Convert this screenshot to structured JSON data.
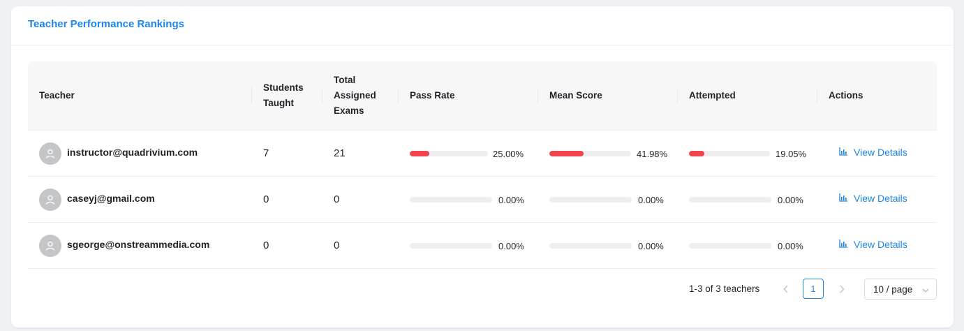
{
  "card": {
    "title": "Teacher Performance Rankings"
  },
  "table": {
    "headers": {
      "teacher": "Teacher",
      "students_taught_1": "Students",
      "students_taught_2": "Taught",
      "total_exams_1": "Total",
      "total_exams_2": "Assigned",
      "total_exams_3": "Exams",
      "pass_rate": "Pass Rate",
      "mean_score": "Mean Score",
      "attempted": "Attempted",
      "actions": "Actions"
    },
    "rows": [
      {
        "email": "instructor@quadrivium.com",
        "students_taught": "7",
        "total_exams": "21",
        "pass_rate": 25.0,
        "pass_rate_label": "25.00%",
        "mean_score": 41.98,
        "mean_score_label": "41.98%",
        "attempted": 19.05,
        "attempted_label": "19.05%",
        "action_label": "View Details"
      },
      {
        "email": "caseyj@gmail.com",
        "students_taught": "0",
        "total_exams": "0",
        "pass_rate": 0,
        "pass_rate_label": "0.00%",
        "mean_score": 0,
        "mean_score_label": "0.00%",
        "attempted": 0,
        "attempted_label": "0.00%",
        "action_label": "View Details"
      },
      {
        "email": "sgeorge@onstreammedia.com",
        "students_taught": "0",
        "total_exams": "0",
        "pass_rate": 0,
        "pass_rate_label": "0.00%",
        "mean_score": 0,
        "mean_score_label": "0.00%",
        "attempted": 0,
        "attempted_label": "0.00%",
        "action_label": "View Details"
      }
    ]
  },
  "pagination": {
    "summary": "1-3 of 3 teachers",
    "current_page": "1",
    "page_size": "10 / page",
    "prev_icon": "chevron-left-icon",
    "next_icon": "chevron-right-icon"
  },
  "colors": {
    "accent": "#1a87e8",
    "bar_fill": "#f0454f",
    "bar_track": "#eeeeef"
  }
}
